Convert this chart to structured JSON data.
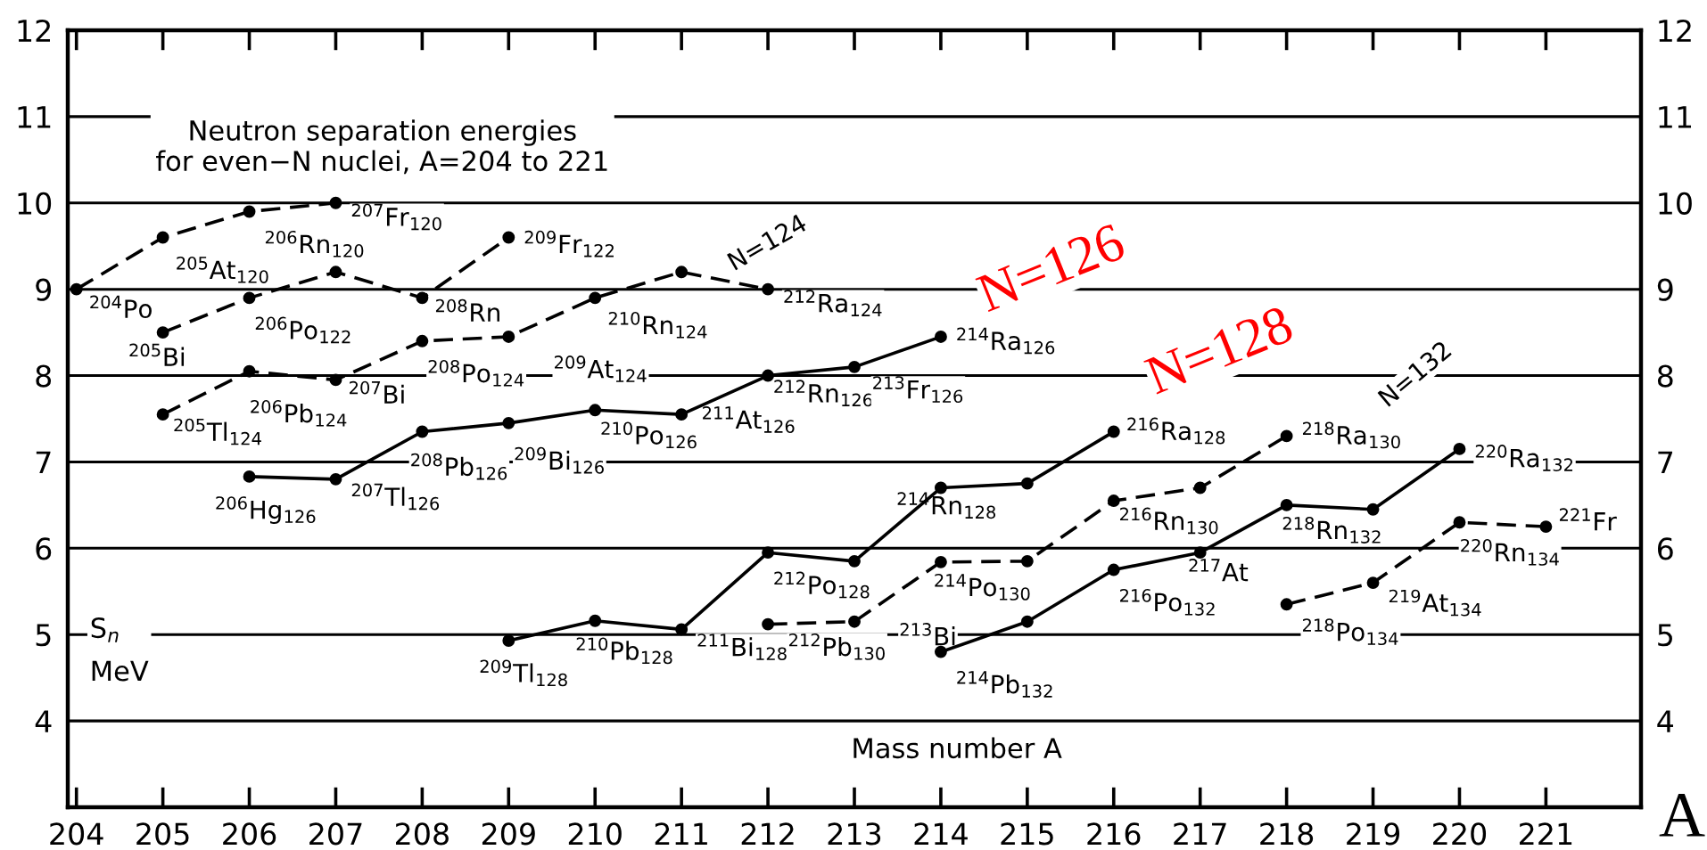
{
  "chart_data": {
    "type": "line",
    "title": "Neutron separation energies\nfor even−N nuclei, A=204 to 221",
    "xlabel": "Mass number A",
    "ylabel": "S$_{n}$\nMeV",
    "series": [
      {
        "color": "#000000",
        "line_style": "dashed",
        "x": [
          204,
          205,
          206,
          207
        ],
        "values": [
          9.0,
          9.6,
          9.9,
          10.0
        ]
      },
      {
        "color": "#000000",
        "line_style": "dashed",
        "x": [
          205,
          206,
          207,
          208,
          209
        ],
        "values": [
          8.5,
          8.9,
          9.2,
          8.9,
          9.6
        ]
      },
      {
        "color": "#000000",
        "line_style": "dashed",
        "x": [
          205,
          206,
          207,
          208,
          209,
          210,
          211,
          212
        ],
        "values": [
          7.55,
          8.05,
          7.95,
          8.4,
          8.45,
          8.9,
          9.2,
          9.0
        ]
      },
      {
        "color": "#000000",
        "line_style": "solid",
        "x": [
          206,
          207,
          208,
          209,
          210,
          211,
          212,
          213,
          214
        ],
        "values": [
          6.83,
          6.8,
          7.35,
          7.45,
          7.6,
          7.55,
          8.0,
          8.1,
          8.45
        ]
      },
      {
        "color": "#000000",
        "line_style": "solid",
        "x": [
          209,
          210,
          211,
          212,
          213,
          214,
          215,
          216
        ],
        "values": [
          4.93,
          5.16,
          5.06,
          5.95,
          5.85,
          6.7,
          6.75,
          7.35
        ]
      },
      {
        "color": "#000000",
        "line_style": "dashed",
        "x": [
          212,
          213,
          214,
          215,
          216,
          217,
          218
        ],
        "values": [
          5.12,
          5.15,
          5.84,
          5.85,
          6.55,
          6.7,
          7.3
        ]
      },
      {
        "color": "#000000",
        "line_style": "solid",
        "x": [
          214,
          215,
          216,
          217,
          218,
          219,
          220
        ],
        "values": [
          4.8,
          5.15,
          5.75,
          5.95,
          6.5,
          6.45,
          7.15
        ]
      },
      {
        "color": "#000000",
        "line_style": "dashed",
        "x": [
          218,
          219,
          220,
          221
        ],
        "values": [
          5.35,
          5.6,
          6.3,
          6.25
        ]
      }
    ],
    "marker": "circle",
    "xlim": [
      203.9,
      222.1
    ],
    "xticks": [
      204,
      205,
      206,
      207,
      208,
      209,
      210,
      211,
      212,
      213,
      214,
      215,
      216,
      217,
      218,
      219,
      220,
      221
    ],
    "ylim": [
      3,
      12
    ],
    "yticks": [
      4,
      5,
      6,
      7,
      8,
      9,
      10,
      11,
      12
    ],
    "y2lim": [
      3,
      12
    ],
    "y2ticks": [
      4,
      5,
      6,
      7,
      8,
      9,
      10,
      11,
      12
    ],
    "grid": "y",
    "annotations": [
      {
        "text": "$^{204}$Po",
        "x": 204,
        "y": 9.0
      },
      {
        "text": "$^{205}$At$_{120}$",
        "x": 205,
        "y": 9.6
      },
      {
        "text": "$^{206}$Rn$_{120}$",
        "x": 206,
        "y": 9.9
      },
      {
        "text": "$^{207}$Fr$_{120}$",
        "x": 207,
        "y": 10.0
      },
      {
        "text": "$^{205}$Bi",
        "x": 205,
        "y": 8.5
      },
      {
        "text": "$^{206}$Po$_{122}$",
        "x": 206,
        "y": 8.9
      },
      {
        "text": "$^{208}$Rn",
        "x": 208,
        "y": 8.9
      },
      {
        "text": "$^{209}$Fr$_{122}$",
        "x": 209,
        "y": 9.6
      },
      {
        "text": "$^{205}$Tl$_{124}$",
        "x": 205,
        "y": 7.55
      },
      {
        "text": "$^{206}$Pb$_{124}$",
        "x": 206,
        "y": 8.05
      },
      {
        "text": "$^{207}$Bi",
        "x": 207,
        "y": 7.95
      },
      {
        "text": "$^{208}$Po$_{124}$",
        "x": 208,
        "y": 8.4
      },
      {
        "text": "$^{209}$At$_{124}$",
        "x": 209,
        "y": 8.45
      },
      {
        "text": "$^{210}$Rn$_{124}$",
        "x": 210,
        "y": 8.9
      },
      {
        "text": "$^{212}$Ra$_{124}$",
        "x": 212,
        "y": 9.0
      },
      "N=124",
      {
        "text": "$^{206}$Hg$_{126}$",
        "x": 206,
        "y": 6.83
      },
      {
        "text": "$^{207}$Tl$_{126}$",
        "x": 207,
        "y": 6.8
      },
      {
        "text": "$^{208}$Pb$_{126}$",
        "x": 208,
        "y": 7.35
      },
      {
        "text": "$^{209}$Bi$_{126}$",
        "x": 209,
        "y": 7.45
      },
      {
        "text": "$^{210}$Po$_{126}$",
        "x": 210,
        "y": 7.6
      },
      {
        "text": "$^{211}$At$_{126}$",
        "x": 211,
        "y": 7.55
      },
      {
        "text": "$^{212}$Rn$_{126}$",
        "x": 212,
        "y": 8.0
      },
      {
        "text": "$^{213}$Fr$_{126}$",
        "x": 213,
        "y": 8.1
      },
      {
        "text": "$^{214}$Ra$_{126}$",
        "x": 214,
        "y": 8.45
      },
      {
        "text": "$^{209}$Tl$_{128}$",
        "x": 209,
        "y": 4.93
      },
      {
        "text": "$^{210}$Pb$_{128}$",
        "x": 210,
        "y": 5.16
      },
      {
        "text": "$^{211}$Bi$_{128}$",
        "x": 211,
        "y": 5.06
      },
      {
        "text": "$^{212}$Po$_{128}$",
        "x": 212,
        "y": 5.95
      },
      {
        "text": "$^{214}$Rn$_{128}$",
        "x": 214,
        "y": 6.7
      },
      {
        "text": "$^{216}$Ra$_{128}$",
        "x": 216,
        "y": 7.35
      },
      {
        "text": "$^{212}$Pb$_{130}$",
        "x": 212,
        "y": 5.12
      },
      {
        "text": "$^{213}$Bi",
        "x": 213,
        "y": 5.15
      },
      {
        "text": "$^{214}$Po$_{130}$",
        "x": 214,
        "y": 5.84
      },
      {
        "text": "$^{216}$Rn$_{130}$",
        "x": 216,
        "y": 6.55
      },
      {
        "text": "$^{218}$Ra$_{130}$",
        "x": 218,
        "y": 7.3
      },
      {
        "text": "$^{214}$Pb$_{132}$",
        "x": 214,
        "y": 4.8
      },
      {
        "text": "$^{216}$Po$_{132}$",
        "x": 216,
        "y": 5.75
      },
      {
        "text": "$^{217}$At",
        "x": 217,
        "y": 5.95
      },
      {
        "text": "$^{218}$Rn$_{132}$",
        "x": 218,
        "y": 6.5
      },
      {
        "text": "$^{220}$Ra$_{132}$",
        "x": 220,
        "y": 7.15
      },
      "N=132",
      {
        "text": "$^{218}$Po$_{134}$",
        "x": 218,
        "y": 5.35
      },
      {
        "text": "$^{219}$At$_{134}$",
        "x": 219,
        "y": 5.6
      },
      {
        "text": "$^{220}$Rn$_{134}$",
        "x": 220,
        "y": 6.3
      },
      {
        "text": "$^{221}$Fr",
        "x": 221,
        "y": 6.25
      },
      "N=126",
      "N=128",
      "A"
    ]
  }
}
